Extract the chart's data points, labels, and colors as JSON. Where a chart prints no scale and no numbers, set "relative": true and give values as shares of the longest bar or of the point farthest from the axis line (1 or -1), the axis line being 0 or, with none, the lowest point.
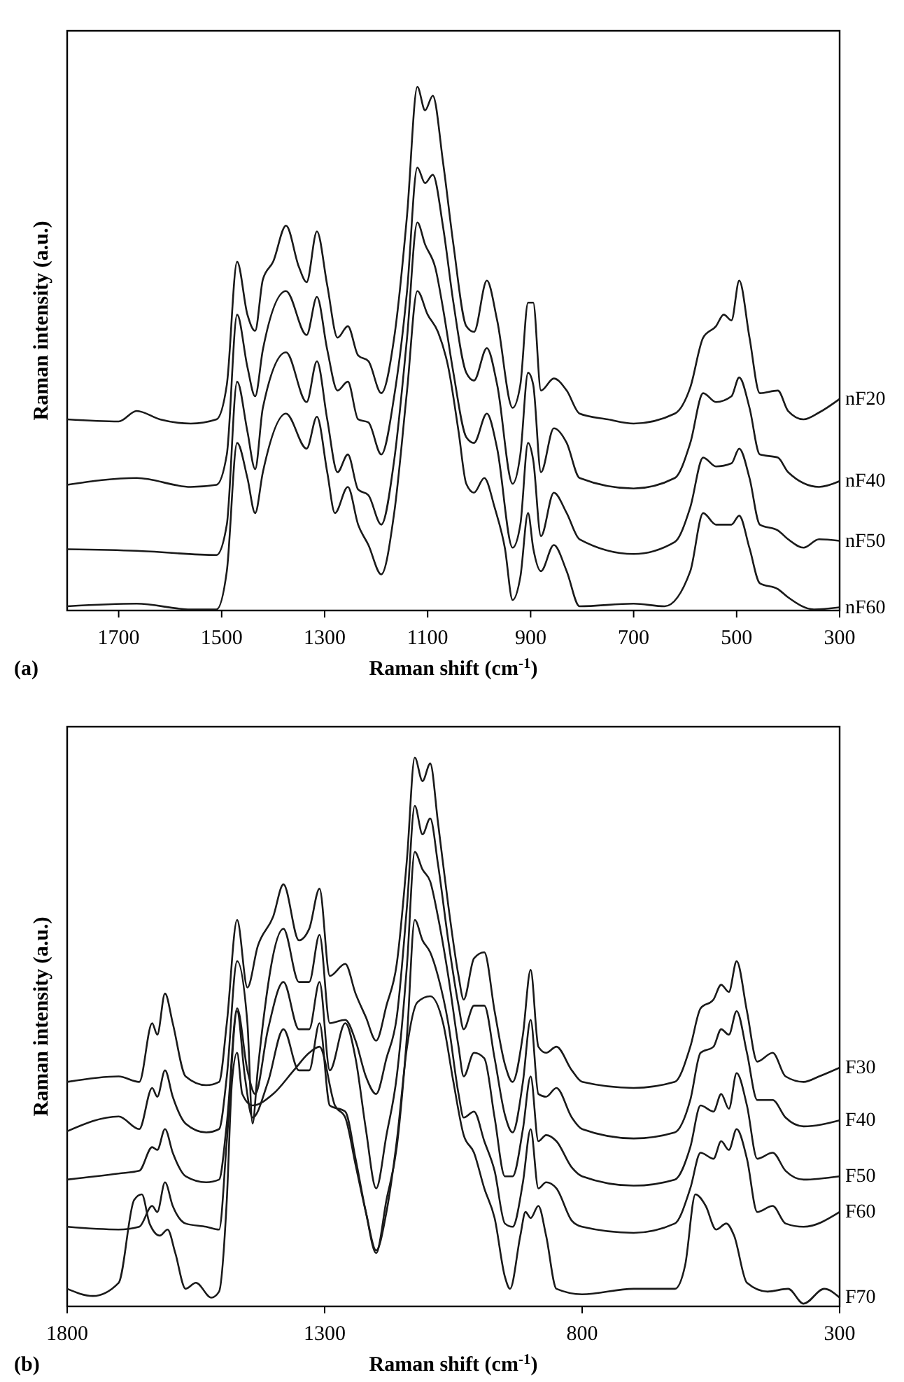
{
  "chart_data": [
    {
      "type": "line",
      "relative": true,
      "xlabel": "Raman shift (cm$^{-1}$)",
      "ylabel": "Raman intensity (a.u.)",
      "xlim": [
        1800,
        300
      ],
      "xticks": [
        1700,
        1500,
        1300,
        1100,
        900,
        700,
        500,
        300
      ],
      "legend": false,
      "grid": false,
      "annotations": [
        "(a)"
      ],
      "series": [
        {
          "name": "nF20",
          "color": "#1a1a1a",
          "x": [
            1800,
            1700,
            1665,
            1620,
            1560,
            1510,
            1490,
            1470,
            1450,
            1435,
            1420,
            1400,
            1375,
            1350,
            1335,
            1315,
            1295,
            1275,
            1255,
            1235,
            1215,
            1190,
            1165,
            1140,
            1120,
            1105,
            1090,
            1070,
            1050,
            1025,
            1010,
            985,
            965,
            935,
            920,
            905,
            895,
            880,
            855,
            830,
            805,
            750,
            700,
            620,
            590,
            565,
            540,
            525,
            510,
            495,
            475,
            455,
            420,
            400,
            370,
            340,
            300
          ],
          "values": [
            0.365,
            0.361,
            0.381,
            0.365,
            0.357,
            0.365,
            0.431,
            0.666,
            0.565,
            0.534,
            0.632,
            0.666,
            0.735,
            0.656,
            0.627,
            0.724,
            0.621,
            0.521,
            0.543,
            0.487,
            0.476,
            0.415,
            0.521,
            0.755,
            1.0,
            0.955,
            0.983,
            0.855,
            0.699,
            0.543,
            0.532,
            0.63,
            0.554,
            0.387,
            0.431,
            0.588,
            0.588,
            0.42,
            0.443,
            0.42,
            0.376,
            0.365,
            0.357,
            0.376,
            0.426,
            0.521,
            0.543,
            0.565,
            0.554,
            0.63,
            0.521,
            0.415,
            0.42,
            0.381,
            0.365,
            0.378,
            0.404
          ]
        },
        {
          "name": "nF40",
          "color": "#1a1a1a",
          "x": [
            1800,
            1665,
            1560,
            1510,
            1490,
            1470,
            1450,
            1435,
            1420,
            1375,
            1335,
            1315,
            1295,
            1275,
            1255,
            1235,
            1215,
            1190,
            1165,
            1140,
            1120,
            1105,
            1090,
            1070,
            1050,
            1025,
            1010,
            985,
            965,
            935,
            920,
            905,
            895,
            880,
            855,
            830,
            805,
            700,
            620,
            590,
            565,
            540,
            510,
            495,
            475,
            455,
            420,
            400,
            340,
            300
          ],
          "values": [
            0.24,
            0.253,
            0.236,
            0.24,
            0.298,
            0.565,
            0.465,
            0.409,
            0.498,
            0.61,
            0.526,
            0.599,
            0.498,
            0.42,
            0.437,
            0.365,
            0.359,
            0.298,
            0.409,
            0.61,
            0.846,
            0.816,
            0.832,
            0.732,
            0.588,
            0.454,
            0.439,
            0.501,
            0.431,
            0.242,
            0.298,
            0.454,
            0.431,
            0.264,
            0.348,
            0.32,
            0.253,
            0.233,
            0.253,
            0.32,
            0.415,
            0.398,
            0.409,
            0.445,
            0.387,
            0.298,
            0.292,
            0.264,
            0.236,
            0.247
          ]
        },
        {
          "name": "nF50",
          "color": "#1a1a1a",
          "x": [
            1800,
            1665,
            1510,
            1490,
            1470,
            1450,
            1435,
            1420,
            1375,
            1335,
            1315,
            1295,
            1275,
            1255,
            1235,
            1215,
            1190,
            1165,
            1140,
            1120,
            1105,
            1085,
            1070,
            1050,
            1025,
            1010,
            985,
            965,
            935,
            920,
            905,
            895,
            880,
            855,
            830,
            805,
            700,
            620,
            590,
            565,
            540,
            510,
            495,
            475,
            455,
            420,
            400,
            370,
            340,
            300
          ],
          "values": [
            0.117,
            0.114,
            0.106,
            0.164,
            0.437,
            0.342,
            0.27,
            0.387,
            0.493,
            0.398,
            0.476,
            0.365,
            0.264,
            0.298,
            0.231,
            0.22,
            0.164,
            0.287,
            0.521,
            0.741,
            0.699,
            0.654,
            0.576,
            0.454,
            0.331,
            0.32,
            0.376,
            0.309,
            0.12,
            0.164,
            0.32,
            0.287,
            0.142,
            0.225,
            0.186,
            0.136,
            0.108,
            0.131,
            0.197,
            0.292,
            0.275,
            0.281,
            0.309,
            0.253,
            0.164,
            0.153,
            0.136,
            0.12,
            0.136,
            0.133
          ]
        },
        {
          "name": "nF60",
          "color": "#1a1a1a",
          "x": [
            1800,
            1665,
            1560,
            1510,
            1490,
            1470,
            1450,
            1435,
            1420,
            1375,
            1335,
            1315,
            1295,
            1280,
            1255,
            1235,
            1215,
            1190,
            1165,
            1140,
            1120,
            1100,
            1080,
            1060,
            1040,
            1025,
            1010,
            990,
            970,
            950,
            935,
            920,
            905,
            895,
            880,
            855,
            830,
            805,
            700,
            640,
            590,
            565,
            540,
            510,
            495,
            475,
            455,
            420,
            400,
            350,
            300
          ],
          "values": [
            0.008,
            0.013,
            0.002,
            0.002,
            0.075,
            0.32,
            0.253,
            0.186,
            0.264,
            0.376,
            0.309,
            0.37,
            0.264,
            0.186,
            0.236,
            0.164,
            0.125,
            0.069,
            0.186,
            0.42,
            0.61,
            0.565,
            0.532,
            0.465,
            0.342,
            0.242,
            0.225,
            0.253,
            0.197,
            0.119,
            0.02,
            0.064,
            0.186,
            0.119,
            0.075,
            0.125,
            0.075,
            0.008,
            0.013,
            0.008,
            0.075,
            0.186,
            0.164,
            0.164,
            0.181,
            0.119,
            0.052,
            0.041,
            0.025,
            0.002,
            0.006
          ]
        }
      ]
    },
    {
      "type": "line",
      "relative": true,
      "xlabel": "Raman shift (cm$^{-1}$)",
      "ylabel": "Raman intensity (a.u.)",
      "xlim": [
        1800,
        300
      ],
      "xticks": [
        1800,
        1300,
        800,
        300
      ],
      "legend": false,
      "grid": false,
      "annotations": [
        "(b)"
      ],
      "series": [
        {
          "name": "F30",
          "color": "#1a1a1a",
          "x": [
            1800,
            1700,
            1660,
            1635,
            1625,
            1610,
            1595,
            1570,
            1530,
            1505,
            1490,
            1470,
            1450,
            1430,
            1400,
            1380,
            1350,
            1330,
            1310,
            1290,
            1260,
            1240,
            1220,
            1200,
            1180,
            1160,
            1140,
            1125,
            1110,
            1095,
            1080,
            1060,
            1040,
            1030,
            1010,
            990,
            970,
            950,
            935,
            915,
            900,
            885,
            870,
            850,
            820,
            800,
            700,
            620,
            590,
            570,
            545,
            530,
            515,
            500,
            480,
            460,
            430,
            405,
            370,
            340,
            300
          ],
          "values": [
            0.409,
            0.419,
            0.409,
            0.516,
            0.495,
            0.57,
            0.516,
            0.419,
            0.403,
            0.409,
            0.516,
            0.704,
            0.581,
            0.656,
            0.71,
            0.769,
            0.667,
            0.688,
            0.761,
            0.602,
            0.624,
            0.57,
            0.527,
            0.484,
            0.548,
            0.624,
            0.817,
            1.0,
            0.957,
            0.989,
            0.882,
            0.731,
            0.602,
            0.559,
            0.634,
            0.645,
            0.538,
            0.441,
            0.409,
            0.495,
            0.613,
            0.473,
            0.462,
            0.473,
            0.43,
            0.409,
            0.398,
            0.409,
            0.473,
            0.543,
            0.559,
            0.586,
            0.573,
            0.629,
            0.538,
            0.446,
            0.462,
            0.419,
            0.409,
            0.419,
            0.435
          ]
        },
        {
          "name": "F40",
          "color": "#1a1a1a",
          "x": [
            1800,
            1700,
            1660,
            1635,
            1625,
            1610,
            1595,
            1570,
            1530,
            1505,
            1490,
            1470,
            1450,
            1440,
            1430,
            1380,
            1350,
            1330,
            1310,
            1290,
            1260,
            1240,
            1220,
            1200,
            1180,
            1160,
            1140,
            1125,
            1110,
            1095,
            1080,
            1060,
            1040,
            1030,
            1010,
            990,
            970,
            950,
            935,
            915,
            900,
            885,
            870,
            850,
            820,
            800,
            700,
            620,
            590,
            570,
            545,
            530,
            515,
            500,
            480,
            460,
            430,
            405,
            370,
            300
          ],
          "values": [
            0.319,
            0.346,
            0.323,
            0.398,
            0.382,
            0.43,
            0.382,
            0.333,
            0.317,
            0.323,
            0.419,
            0.629,
            0.516,
            0.333,
            0.43,
            0.688,
            0.591,
            0.591,
            0.677,
            0.516,
            0.522,
            0.484,
            0.419,
            0.387,
            0.452,
            0.527,
            0.731,
            0.912,
            0.86,
            0.889,
            0.806,
            0.667,
            0.548,
            0.505,
            0.548,
            0.548,
            0.452,
            0.349,
            0.317,
            0.409,
            0.522,
            0.387,
            0.382,
            0.398,
            0.344,
            0.323,
            0.306,
            0.317,
            0.376,
            0.462,
            0.473,
            0.505,
            0.495,
            0.538,
            0.462,
            0.376,
            0.376,
            0.344,
            0.328,
            0.339
          ]
        },
        {
          "name": "F50",
          "color": "#1a1a1a",
          "x": [
            1800,
            1700,
            1660,
            1635,
            1625,
            1610,
            1595,
            1570,
            1530,
            1505,
            1490,
            1470,
            1450,
            1435,
            1410,
            1380,
            1350,
            1330,
            1310,
            1290,
            1260,
            1240,
            1220,
            1200,
            1180,
            1160,
            1140,
            1125,
            1110,
            1095,
            1080,
            1060,
            1040,
            1030,
            1010,
            990,
            970,
            950,
            935,
            915,
            900,
            885,
            870,
            850,
            820,
            800,
            700,
            620,
            590,
            570,
            545,
            530,
            515,
            500,
            480,
            460,
            430,
            405,
            370,
            300
          ],
          "values": [
            0.231,
            0.242,
            0.247,
            0.29,
            0.285,
            0.323,
            0.28,
            0.237,
            0.226,
            0.231,
            0.333,
            0.543,
            0.43,
            0.387,
            0.505,
            0.591,
            0.505,
            0.505,
            0.591,
            0.43,
            0.516,
            0.452,
            0.323,
            0.215,
            0.312,
            0.419,
            0.624,
            0.828,
            0.796,
            0.774,
            0.71,
            0.602,
            0.473,
            0.419,
            0.462,
            0.452,
            0.344,
            0.237,
            0.237,
            0.323,
            0.419,
            0.301,
            0.312,
            0.301,
            0.253,
            0.237,
            0.22,
            0.231,
            0.29,
            0.366,
            0.355,
            0.387,
            0.36,
            0.425,
            0.366,
            0.269,
            0.28,
            0.247,
            0.231,
            0.237
          ]
        },
        {
          "name": "F60",
          "color": "#1a1a1a",
          "x": [
            1800,
            1700,
            1660,
            1635,
            1625,
            1610,
            1595,
            1570,
            1530,
            1505,
            1490,
            1470,
            1455,
            1440,
            1410,
            1380,
            1350,
            1330,
            1310,
            1290,
            1260,
            1240,
            1220,
            1200,
            1180,
            1160,
            1140,
            1125,
            1110,
            1095,
            1080,
            1060,
            1040,
            1030,
            1010,
            990,
            970,
            950,
            935,
            915,
            900,
            885,
            870,
            850,
            820,
            800,
            700,
            620,
            590,
            570,
            545,
            530,
            515,
            500,
            480,
            460,
            430,
            405,
            370,
            300
          ],
          "values": [
            0.145,
            0.14,
            0.145,
            0.183,
            0.172,
            0.226,
            0.183,
            0.151,
            0.145,
            0.14,
            0.301,
            0.538,
            0.419,
            0.344,
            0.409,
            0.505,
            0.43,
            0.43,
            0.516,
            0.366,
            0.355,
            0.269,
            0.172,
            0.097,
            0.194,
            0.29,
            0.495,
            0.704,
            0.667,
            0.645,
            0.602,
            0.516,
            0.387,
            0.344,
            0.355,
            0.301,
            0.247,
            0.151,
            0.145,
            0.226,
            0.323,
            0.215,
            0.226,
            0.215,
            0.156,
            0.145,
            0.134,
            0.151,
            0.215,
            0.28,
            0.269,
            0.301,
            0.285,
            0.323,
            0.269,
            0.172,
            0.183,
            0.151,
            0.145,
            0.172
          ]
        },
        {
          "name": "F70",
          "color": "#1a1a1a",
          "x": [
            1800,
            1750,
            1700,
            1670,
            1655,
            1640,
            1620,
            1605,
            1590,
            1570,
            1550,
            1520,
            1505,
            1490,
            1480,
            1470,
            1460,
            1440,
            1400,
            1360,
            1330,
            1310,
            1280,
            1260,
            1240,
            1220,
            1200,
            1180,
            1160,
            1140,
            1120,
            1095,
            1070,
            1050,
            1030,
            1010,
            990,
            970,
            950,
            940,
            920,
            910,
            900,
            885,
            870,
            850,
            800,
            700,
            620,
            600,
            580,
            560,
            540,
            520,
            505,
            480,
            440,
            400,
            370,
            330,
            300
          ],
          "values": [
            0.032,
            0.019,
            0.043,
            0.194,
            0.204,
            0.151,
            0.129,
            0.14,
            0.097,
            0.032,
            0.043,
            0.016,
            0.027,
            0.194,
            0.409,
            0.462,
            0.387,
            0.366,
            0.387,
            0.43,
            0.462,
            0.473,
            0.366,
            0.344,
            0.258,
            0.172,
            0.102,
            0.172,
            0.301,
            0.473,
            0.554,
            0.565,
            0.516,
            0.409,
            0.312,
            0.28,
            0.215,
            0.161,
            0.054,
            0.032,
            0.129,
            0.172,
            0.161,
            0.183,
            0.129,
            0.032,
            0.022,
            0.032,
            0.032,
            0.075,
            0.204,
            0.183,
            0.14,
            0.151,
            0.129,
            0.043,
            0.027,
            0.032,
            0.005,
            0.032,
            0.016
          ]
        }
      ]
    }
  ]
}
